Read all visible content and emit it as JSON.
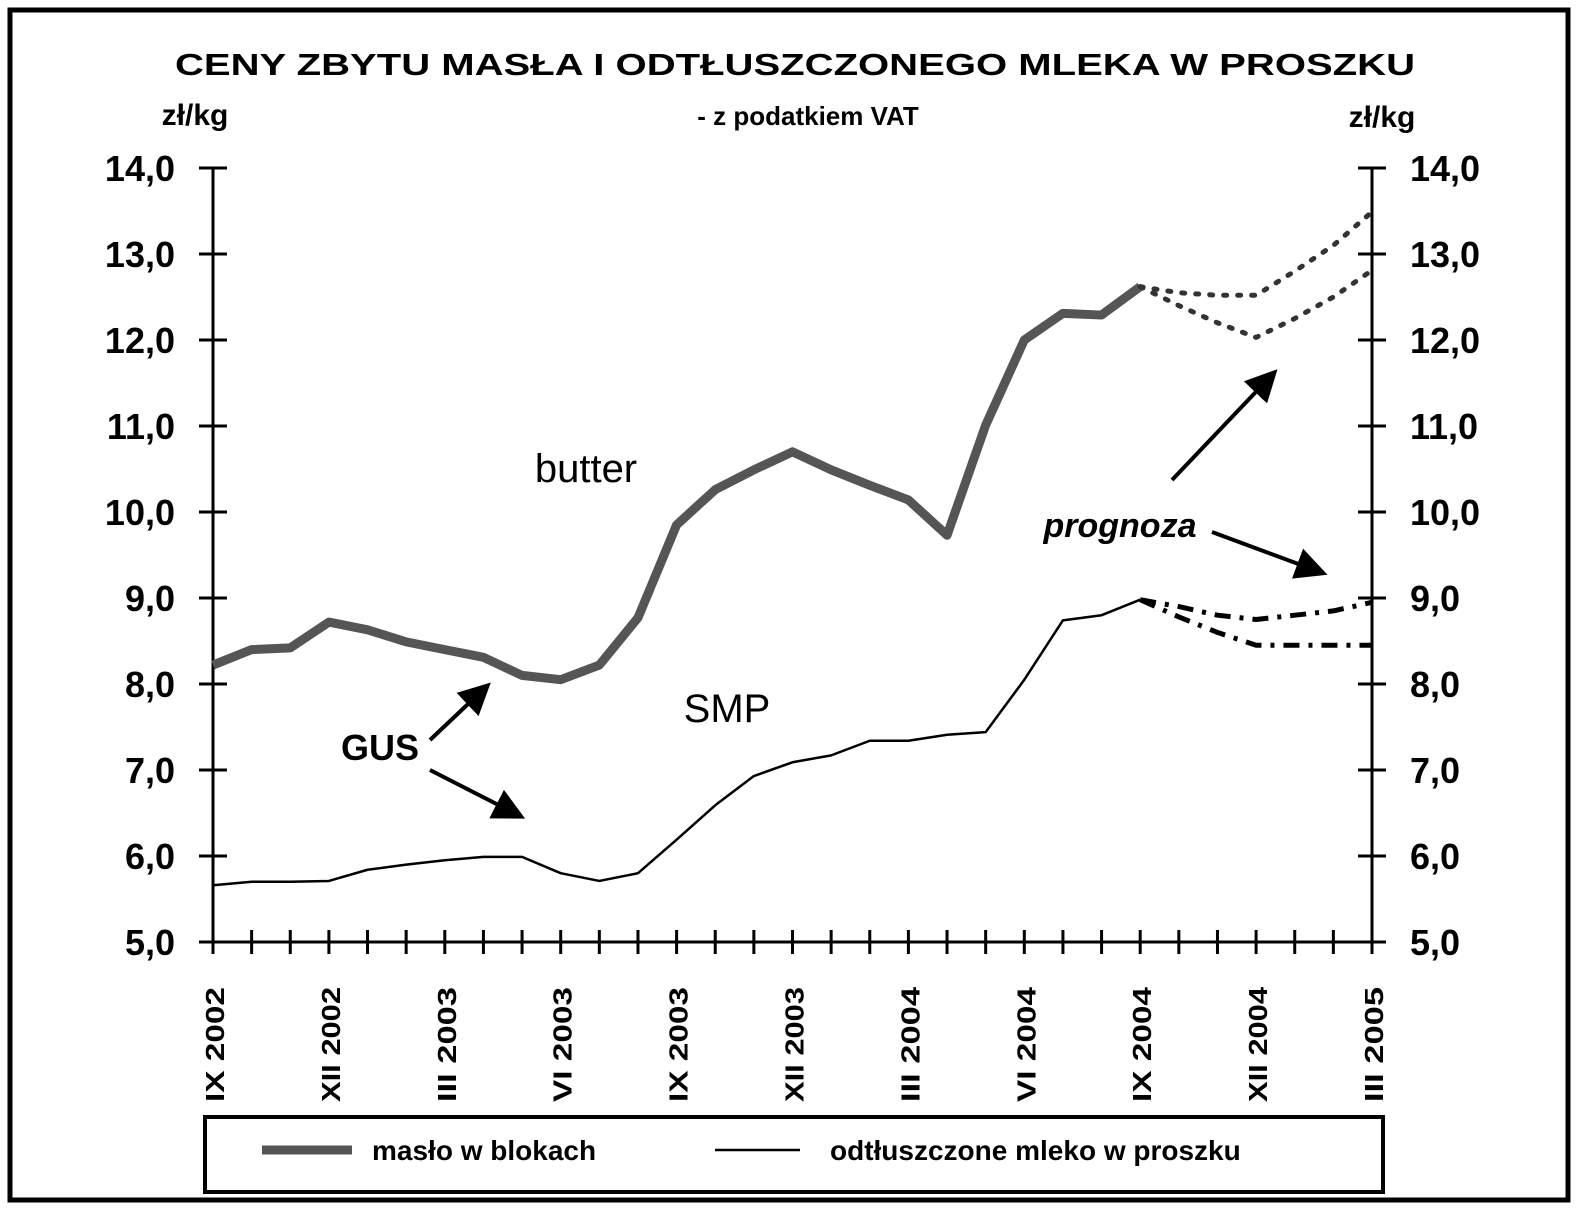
{
  "chart_data": {
    "type": "line",
    "title": "CENY ZBYTU  MASŁA I ODTŁUSZCZONEGO  MLEKA W PROSZKU",
    "subtitle": "- z podatkiem VAT",
    "y_label": "zł/kg",
    "y2_label": "zł/kg",
    "annotations": [
      "butter",
      "SMP",
      "GUS",
      "prognoza"
    ],
    "categories": [
      "IX 2002",
      null,
      null,
      "XII 2002",
      null,
      null,
      "III 2003",
      null,
      null,
      "VI 2003",
      null,
      null,
      "IX 2003",
      null,
      null,
      "XII 2003",
      null,
      null,
      "III 2004",
      null,
      null,
      "VI 2004",
      null,
      null,
      "IX 2004",
      null,
      null,
      "XII 2004",
      null,
      null,
      "III 2005"
    ],
    "ylim": [
      5,
      14
    ],
    "yticks": [
      {
        "value": 5,
        "label": "5,0"
      },
      {
        "value": 6,
        "label": "6,0"
      },
      {
        "value": 7,
        "label": "7,0"
      },
      {
        "value": 8,
        "label": "8,0"
      },
      {
        "value": 9,
        "label": "9,0"
      },
      {
        "value": 10,
        "label": "10,0"
      },
      {
        "value": 11,
        "label": "11,0"
      },
      {
        "value": 12,
        "label": "12,0"
      },
      {
        "value": 13,
        "label": "13,0"
      },
      {
        "value": 14,
        "label": "14,0"
      }
    ],
    "series": [
      {
        "name": "masło w blokach",
        "color": "#555555",
        "style": "thick",
        "values": [
          8.22,
          8.4,
          8.42,
          8.72,
          8.63,
          8.49,
          8.4,
          8.31,
          8.1,
          8.05,
          8.22,
          8.77,
          9.85,
          10.26,
          10.49,
          10.7,
          10.49,
          10.31,
          10.14,
          9.73,
          11.01,
          12.0,
          12.31,
          12.29,
          12.62,
          null,
          null,
          null,
          null,
          null,
          null
        ]
      },
      {
        "name": "odtłuszczone mleko w proszku",
        "color": "#000000",
        "style": "thin",
        "values": [
          5.66,
          5.7,
          5.7,
          5.71,
          5.84,
          5.9,
          5.95,
          5.99,
          5.99,
          5.8,
          5.71,
          5.8,
          6.19,
          6.59,
          6.93,
          7.09,
          7.17,
          7.34,
          7.34,
          7.41,
          7.44,
          8.05,
          8.74,
          8.8,
          8.98,
          null,
          null,
          null,
          null,
          null,
          null
        ]
      },
      {
        "color": "#333333",
        "style": "dotted",
        "values": [
          null,
          null,
          null,
          null,
          null,
          null,
          null,
          null,
          null,
          null,
          null,
          null,
          null,
          null,
          null,
          null,
          null,
          null,
          null,
          null,
          null,
          null,
          null,
          null,
          12.62,
          12.55,
          12.52,
          12.52,
          12.8,
          13.1,
          13.49
        ]
      },
      {
        "color": "#333333",
        "style": "dotted",
        "values": [
          null,
          null,
          null,
          null,
          null,
          null,
          null,
          null,
          null,
          null,
          null,
          null,
          null,
          null,
          null,
          null,
          null,
          null,
          null,
          null,
          null,
          null,
          null,
          null,
          12.62,
          12.4,
          12.2,
          12.03,
          12.25,
          12.5,
          12.81
        ]
      },
      {
        "color": "#000000",
        "style": "dashdot",
        "values": [
          null,
          null,
          null,
          null,
          null,
          null,
          null,
          null,
          null,
          null,
          null,
          null,
          null,
          null,
          null,
          null,
          null,
          null,
          null,
          null,
          null,
          null,
          null,
          null,
          8.98,
          8.9,
          8.8,
          8.75,
          8.8,
          8.85,
          8.95
        ]
      },
      {
        "color": "#000000",
        "style": "dashdot",
        "values": [
          null,
          null,
          null,
          null,
          null,
          null,
          null,
          null,
          null,
          null,
          null,
          null,
          null,
          null,
          null,
          null,
          null,
          null,
          null,
          null,
          null,
          null,
          null,
          null,
          8.98,
          8.78,
          8.6,
          8.45,
          8.45,
          8.45,
          8.45
        ]
      }
    ]
  }
}
